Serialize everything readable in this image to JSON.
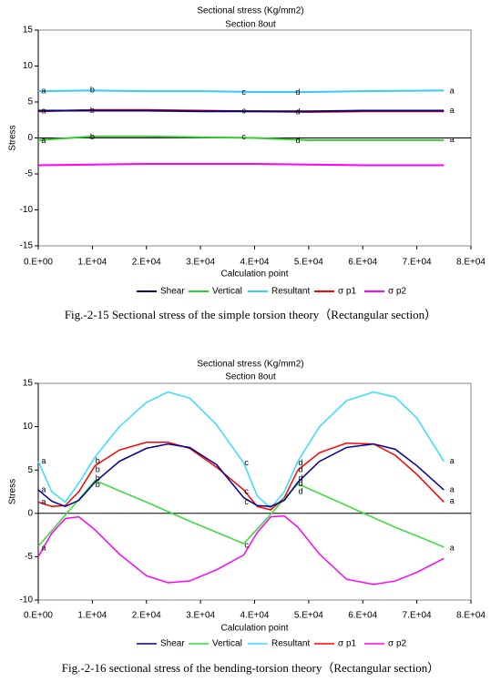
{
  "chart_data": [
    {
      "type": "line",
      "title": "Sectional stress (Kg/mm2)",
      "subtitle": "Section 8out",
      "x_label": "Calculation point",
      "y_label": "Stress",
      "caption": "Fig.-2-15 Sectional stress of the simple torsion theory（Rectangular section）",
      "x": [
        0,
        10000,
        20000,
        30000,
        40000,
        50000,
        60000,
        75000
      ],
      "series": [
        {
          "name": "Shear",
          "color": "#000080",
          "values": [
            3.8,
            3.8,
            3.8,
            3.7,
            3.7,
            3.7,
            3.8,
            3.8
          ]
        },
        {
          "name": "Vertical",
          "color": "#33cc33",
          "values": [
            -0.3,
            0.2,
            0.2,
            0.1,
            0.0,
            -0.3,
            -0.3,
            -0.3
          ]
        },
        {
          "name": "Resultant",
          "color": "#33ccff",
          "values": [
            6.5,
            6.6,
            6.5,
            6.5,
            6.4,
            6.4,
            6.5,
            6.6
          ]
        },
        {
          "name": "σ p1",
          "color": "#ff0000",
          "values": [
            3.7,
            3.9,
            3.9,
            3.8,
            3.7,
            3.6,
            3.7,
            3.7
          ]
        },
        {
          "name": "σ p2",
          "color": "#ff00ff",
          "values": [
            -3.8,
            -3.7,
            -3.6,
            -3.6,
            -3.6,
            -3.7,
            -3.8,
            -3.8
          ]
        }
      ],
      "xlim": [
        0,
        80000
      ],
      "xticks": [
        {
          "value": 0,
          "label": "0.E+00"
        },
        {
          "value": 10000,
          "label": "1.E+04"
        },
        {
          "value": 20000,
          "label": "2.E+04"
        },
        {
          "value": 30000,
          "label": "3.E+04"
        },
        {
          "value": 40000,
          "label": "4.E+04"
        },
        {
          "value": 50000,
          "label": "5.E+04"
        },
        {
          "value": 60000,
          "label": "6.E+04"
        },
        {
          "value": 70000,
          "label": "7.E+04"
        },
        {
          "value": 80000,
          "label": "8.E+04"
        }
      ],
      "ylim": [
        -15,
        15
      ],
      "yticks": [
        -15,
        -10,
        -5,
        0,
        5,
        10,
        15
      ],
      "annotations": [
        {
          "text": "a",
          "x": 1000,
          "y": 6.5
        },
        {
          "text": "a",
          "x": 1000,
          "y": 3.7
        },
        {
          "text": "a",
          "x": 1000,
          "y": -0.4
        },
        {
          "text": "b",
          "x": 10000,
          "y": 6.6
        },
        {
          "text": "b",
          "x": 10000,
          "y": 3.8
        },
        {
          "text": "b",
          "x": 10000,
          "y": 0.1
        },
        {
          "text": "c",
          "x": 38000,
          "y": 6.3
        },
        {
          "text": "c",
          "x": 38000,
          "y": 3.7
        },
        {
          "text": "c",
          "x": 38000,
          "y": 0.1
        },
        {
          "text": "d",
          "x": 48000,
          "y": 6.3
        },
        {
          "text": "d",
          "x": 48000,
          "y": 3.6
        },
        {
          "text": "d",
          "x": 48000,
          "y": -0.4
        },
        {
          "text": "a",
          "x": 76500,
          "y": 6.5
        },
        {
          "text": "a",
          "x": 76500,
          "y": 3.8
        },
        {
          "text": "a",
          "x": 76500,
          "y": -0.3
        }
      ],
      "line_width": 2
    },
    {
      "type": "line",
      "title": "Sectional stress (Kg/mm2)",
      "subtitle": "Section 8out",
      "x_label": "Calculation point",
      "y_label": "Stress",
      "caption": "Fig.-2-16 sectional stress of the bending-torsion theory（Rectangular section）",
      "x": [
        0,
        2500,
        5000,
        7500,
        10500,
        15000,
        20000,
        24000,
        28000,
        33000,
        38000,
        40500,
        43000,
        45500,
        48000,
        52000,
        57000,
        62000,
        66000,
        70000,
        75000
      ],
      "series": [
        {
          "name": "Shear",
          "color": "#000099",
          "values": [
            2.7,
            1.4,
            0.8,
            1.5,
            3.6,
            6,
            7.5,
            8,
            7.6,
            5.6,
            1.8,
            0.9,
            0.8,
            1.5,
            3.6,
            6,
            7.6,
            8,
            7.4,
            5.5,
            2.7
          ]
        },
        {
          "name": "Vertical",
          "color": "#33dd33",
          "values": [
            -3.8,
            -2,
            -0.2,
            1.6,
            3.8,
            2.6,
            1.3,
            0.2,
            -0.9,
            -2.2,
            -3.5,
            -1.8,
            -0.1,
            1.7,
            3.4,
            2.3,
            0.9,
            -0.5,
            -1.6,
            -2.6,
            -3.9
          ]
        },
        {
          "name": "Resultant",
          "color": "#33ddff",
          "values": [
            6,
            2.5,
            1.3,
            3.5,
            6.5,
            10,
            12.8,
            14,
            13.3,
            10.2,
            5.8,
            2,
            0.6,
            2.5,
            6,
            10,
            13,
            14,
            13.4,
            11,
            6
          ]
        },
        {
          "name": "σ p1",
          "color": "#ff0000",
          "values": [
            1.3,
            0.8,
            0.9,
            2.5,
            5.5,
            7.3,
            8.2,
            8.2,
            7.5,
            5.3,
            2.7,
            0.8,
            0.4,
            1.8,
            5,
            7,
            8.1,
            8,
            6.7,
            4.5,
            1.3
          ]
        },
        {
          "name": "σ p2",
          "color": "#ff00ff",
          "values": [
            -5,
            -2.3,
            -0.6,
            -0.4,
            -1.9,
            -4.7,
            -7.2,
            -8,
            -7.8,
            -6.5,
            -4.8,
            -2.2,
            -0.4,
            -0.3,
            -1.6,
            -4.7,
            -7.6,
            -8.2,
            -7.8,
            -6.8,
            -5.2
          ]
        }
      ],
      "xlim": [
        0,
        80000
      ],
      "xticks": [
        {
          "value": 0,
          "label": "0.E+00"
        },
        {
          "value": 10000,
          "label": "1.E+04"
        },
        {
          "value": 20000,
          "label": "2.E+04"
        },
        {
          "value": 30000,
          "label": "3.E+04"
        },
        {
          "value": 40000,
          "label": "4.E+04"
        },
        {
          "value": 50000,
          "label": "5.E+04"
        },
        {
          "value": 60000,
          "label": "6.E+04"
        },
        {
          "value": 70000,
          "label": "7.E+04"
        },
        {
          "value": 80000,
          "label": "8.E+04"
        }
      ],
      "ylim": [
        -10,
        15
      ],
      "yticks": [
        -10,
        -5,
        0,
        5,
        10,
        15
      ],
      "annotations": [
        {
          "text": "a",
          "x": 1000,
          "y": 6
        },
        {
          "text": "a",
          "x": 1000,
          "y": 2.7
        },
        {
          "text": "a",
          "x": 1000,
          "y": 1.3
        },
        {
          "text": "a",
          "x": 1000,
          "y": -4
        },
        {
          "text": "b",
          "x": 11000,
          "y": 6
        },
        {
          "text": "b",
          "x": 11000,
          "y": 5
        },
        {
          "text": "b",
          "x": 11000,
          "y": 4
        },
        {
          "text": "b",
          "x": 11000,
          "y": 3.3
        },
        {
          "text": "c",
          "x": 38500,
          "y": 5.8
        },
        {
          "text": "c",
          "x": 38500,
          "y": 2.5
        },
        {
          "text": "c",
          "x": 38500,
          "y": 1.3
        },
        {
          "text": "c",
          "x": 38500,
          "y": -3.7
        },
        {
          "text": "d",
          "x": 48500,
          "y": 5.8
        },
        {
          "text": "d",
          "x": 48500,
          "y": 5
        },
        {
          "text": "d",
          "x": 48500,
          "y": 4
        },
        {
          "text": "d",
          "x": 48500,
          "y": 3.4
        },
        {
          "text": "d",
          "x": 48500,
          "y": 2.5
        },
        {
          "text": "a",
          "x": 76500,
          "y": 6
        },
        {
          "text": "a",
          "x": 76500,
          "y": 2.7
        },
        {
          "text": "a",
          "x": 76500,
          "y": 1.4
        },
        {
          "text": "a",
          "x": 76500,
          "y": -4
        }
      ],
      "line_width": 1.5
    }
  ]
}
